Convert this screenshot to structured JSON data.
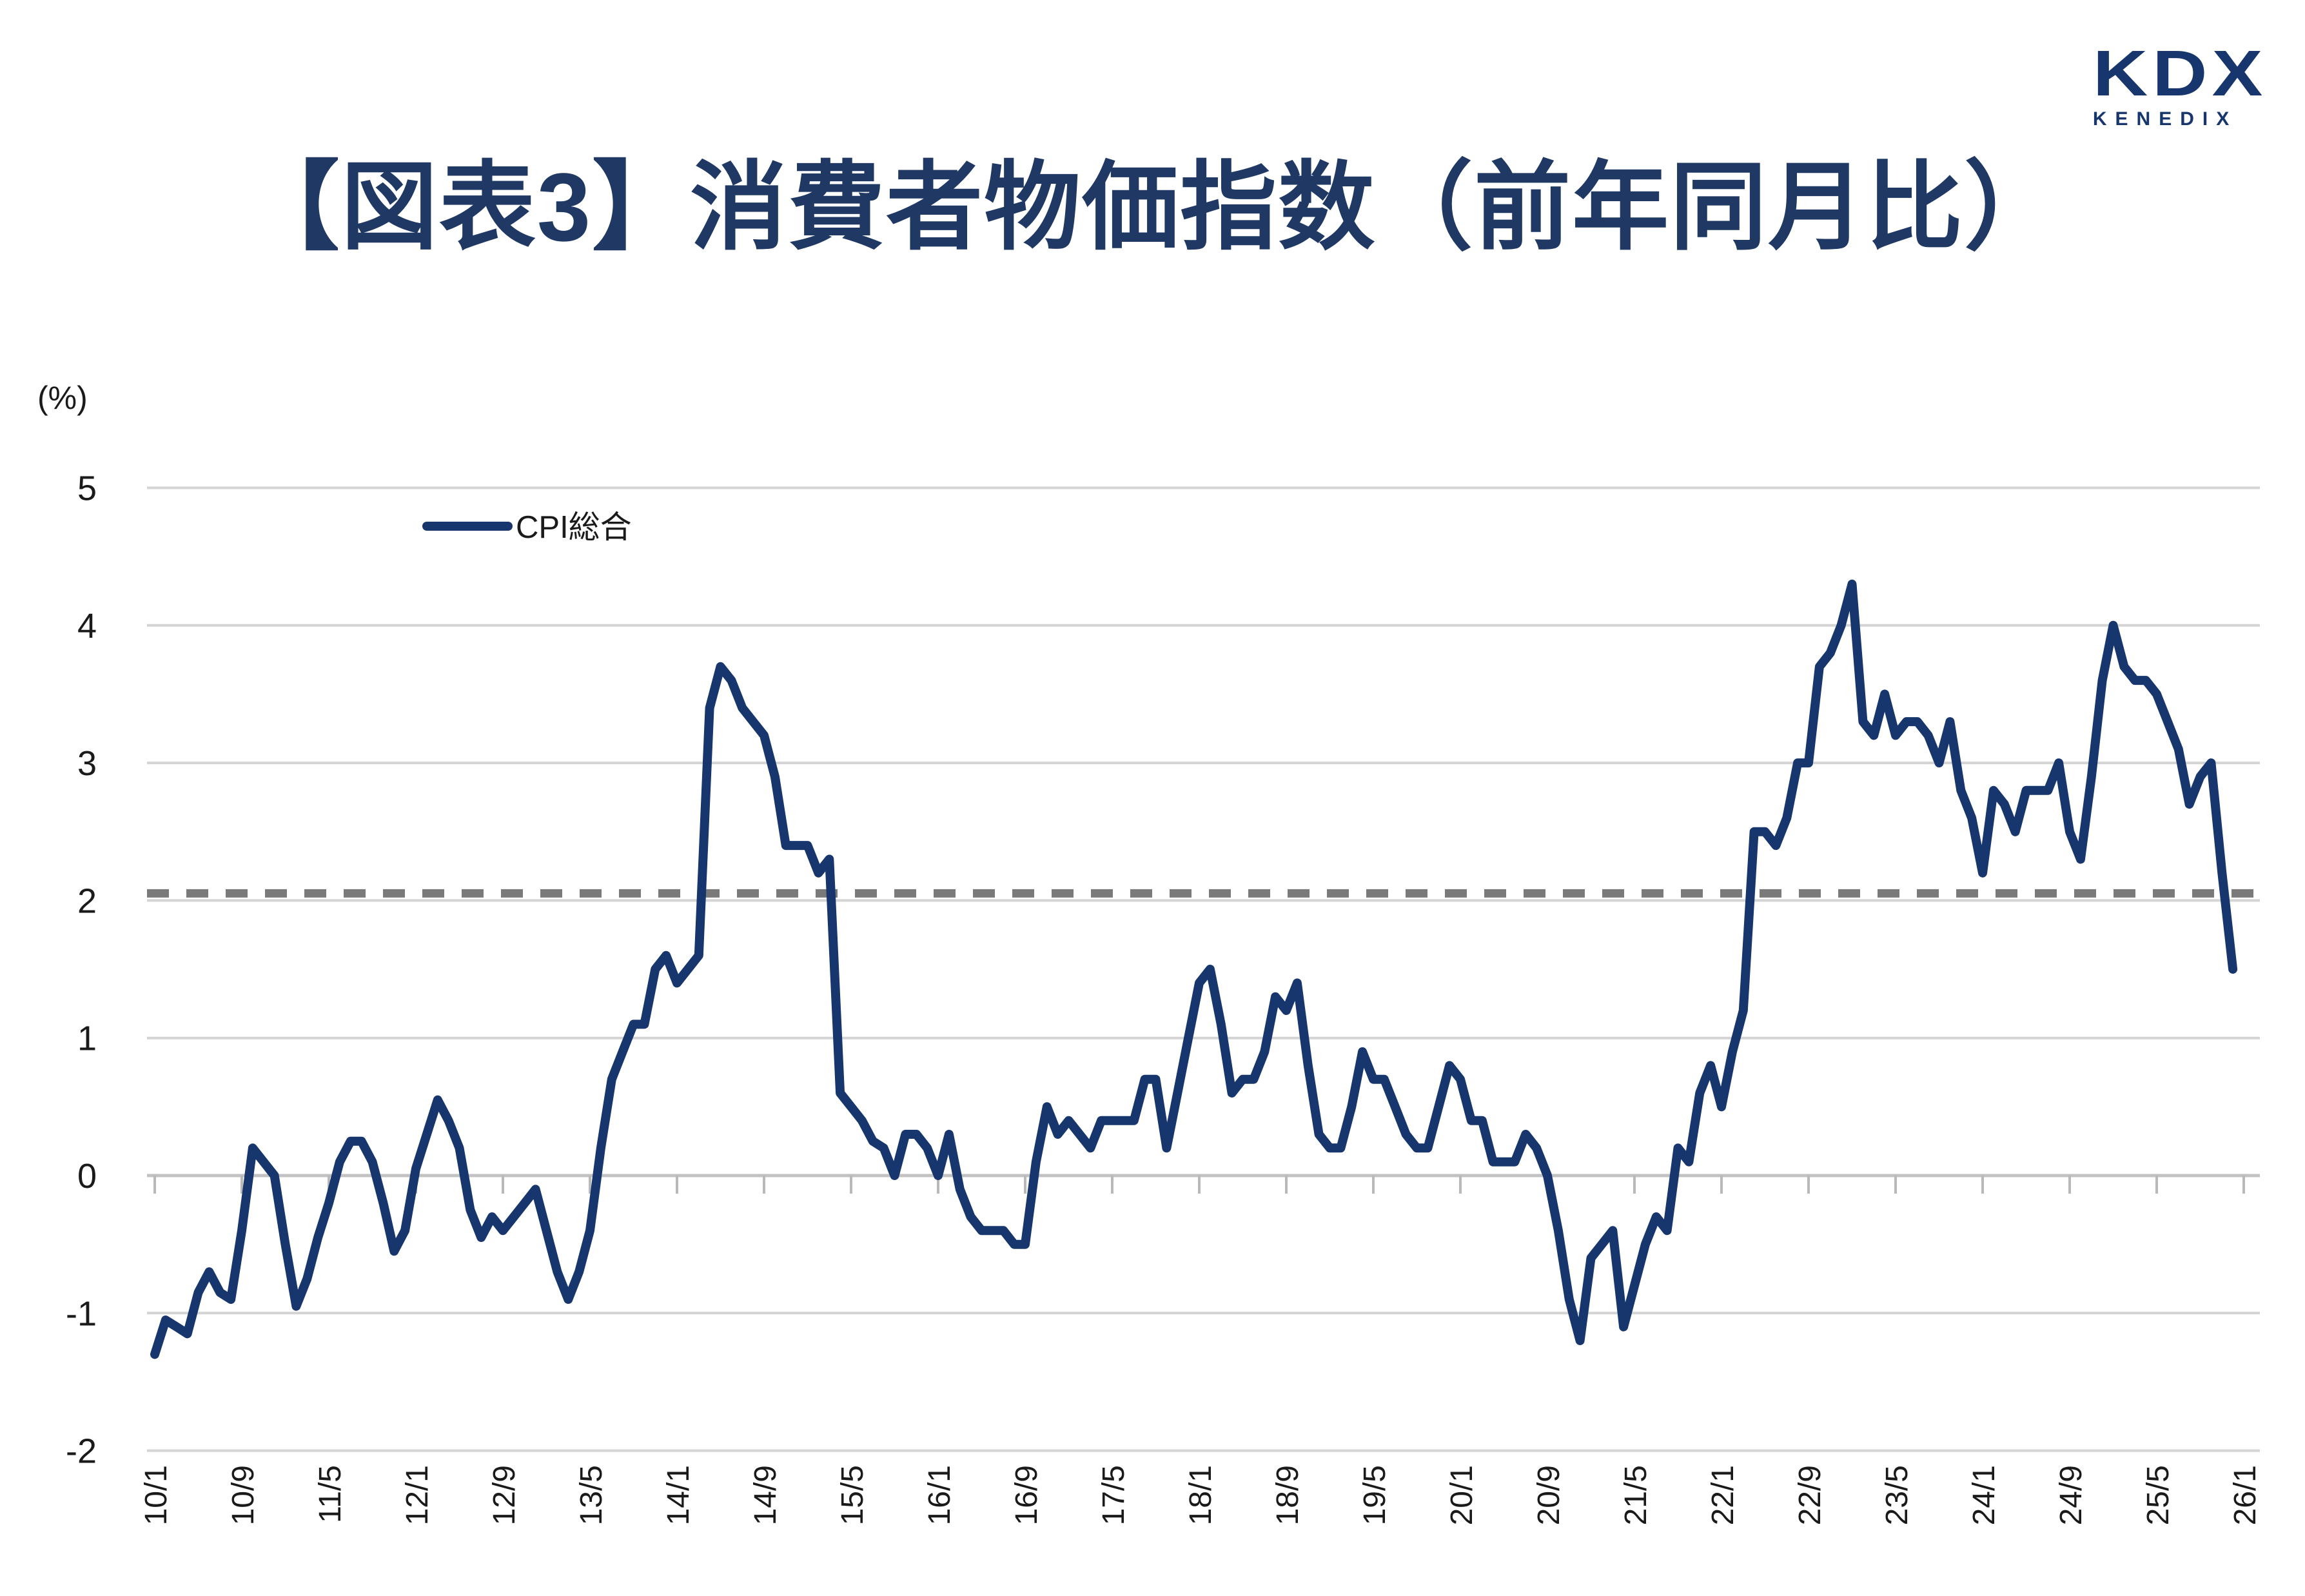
{
  "page": {
    "background": "#ffffff"
  },
  "logo": {
    "kdx": "KDX",
    "kenedix": "KENEDIX",
    "color": "#17366d"
  },
  "header": {
    "title": "【図表3】消費者物価指数（前年同月比）",
    "color": "#1f3864"
  },
  "chart_data": {
    "type": "line",
    "title": "消費者物価指数（前年同月比）",
    "unit_label": "(%)",
    "ylim": [
      -2,
      5
    ],
    "yticks": [
      5,
      4,
      3,
      2,
      1,
      0,
      -1,
      -2
    ],
    "grid": "horizontal",
    "legend_position": "top-left-inside",
    "target_line": {
      "value": 2,
      "style": "dotted",
      "color": "#7a7a7a"
    },
    "x_start": "2010/1",
    "x_interval_months": 1,
    "x_tick_interval_months": 8,
    "x_tick_labels": [
      "10/1",
      "10/9",
      "11/5",
      "12/1",
      "12/9",
      "13/5",
      "14/1",
      "14/9",
      "15/5",
      "16/1",
      "16/9",
      "17/5",
      "18/1",
      "18/9",
      "19/5",
      "20/1",
      "20/9",
      "21/5",
      "22/1",
      "22/9",
      "23/5",
      "24/1",
      "24/9",
      "25/5",
      "26/1"
    ],
    "series": [
      {
        "name": "CPI総合",
        "color": "#17366d",
        "values_by_year": {
          "2010": [
            -1.3,
            -1.05,
            -1.1,
            -1.15,
            -0.85,
            -0.7,
            -0.85,
            -0.9,
            -0.4,
            0.2,
            0.1,
            0.0
          ],
          "2011": [
            -0.5,
            -0.95,
            -0.75,
            -0.45,
            -0.2,
            0.1,
            0.25,
            0.25,
            0.1,
            -0.2,
            -0.55,
            -0.4
          ],
          "2012": [
            0.05,
            0.3,
            0.55,
            0.4,
            0.2,
            -0.25,
            -0.45,
            -0.3,
            -0.4,
            -0.3,
            -0.2,
            -0.1
          ],
          "2013": [
            -0.4,
            -0.7,
            -0.9,
            -0.7,
            -0.4,
            0.2,
            0.7,
            0.9,
            1.1,
            1.1,
            1.5,
            1.6
          ],
          "2014": [
            1.4,
            1.5,
            1.6,
            3.4,
            3.7,
            3.6,
            3.4,
            3.3,
            3.2,
            2.9,
            2.4,
            2.4
          ],
          "2015": [
            2.4,
            2.2,
            2.3,
            0.6,
            0.5,
            0.4,
            0.25,
            0.2,
            0.0,
            0.3,
            0.3,
            0.2
          ],
          "2016": [
            0.0,
            0.3,
            -0.1,
            -0.3,
            -0.4,
            -0.4,
            -0.4,
            -0.5,
            -0.5,
            0.1,
            0.5,
            0.3
          ],
          "2017": [
            0.4,
            0.3,
            0.2,
            0.4,
            0.4,
            0.4,
            0.4,
            0.7,
            0.7,
            0.2,
            0.6,
            1.0
          ],
          "2018": [
            1.4,
            1.5,
            1.1,
            0.6,
            0.7,
            0.7,
            0.9,
            1.3,
            1.2,
            1.4,
            0.8,
            0.3
          ],
          "2019": [
            0.2,
            0.2,
            0.5,
            0.9,
            0.7,
            0.7,
            0.5,
            0.3,
            0.2,
            0.2,
            0.5,
            0.8
          ],
          "2020": [
            0.7,
            0.4,
            0.4,
            0.1,
            0.1,
            0.1,
            0.3,
            0.2,
            0.0,
            -0.4,
            -0.9,
            -1.2
          ],
          "2021": [
            -0.6,
            -0.5,
            -0.4,
            -1.1,
            -0.8,
            -0.5,
            -0.3,
            -0.4,
            0.2,
            0.1,
            0.6,
            0.8
          ],
          "2022": [
            0.5,
            0.9,
            1.2,
            2.5,
            2.5,
            2.4,
            2.6,
            3.0,
            3.0,
            3.7,
            3.8,
            4.0
          ],
          "2023": [
            4.3,
            3.3,
            3.2,
            3.5,
            3.2,
            3.3,
            3.3,
            3.2,
            3.0,
            3.3,
            2.8,
            2.6
          ],
          "2024": [
            2.2,
            2.8,
            2.7,
            2.5,
            2.8,
            2.8,
            2.8,
            3.0,
            2.5,
            2.3,
            2.9,
            3.6
          ],
          "2025": [
            4.0,
            3.7,
            3.6,
            3.6,
            3.5,
            3.3,
            3.1,
            2.7,
            2.9,
            3.0,
            2.2,
            1.5
          ]
        }
      }
    ]
  }
}
